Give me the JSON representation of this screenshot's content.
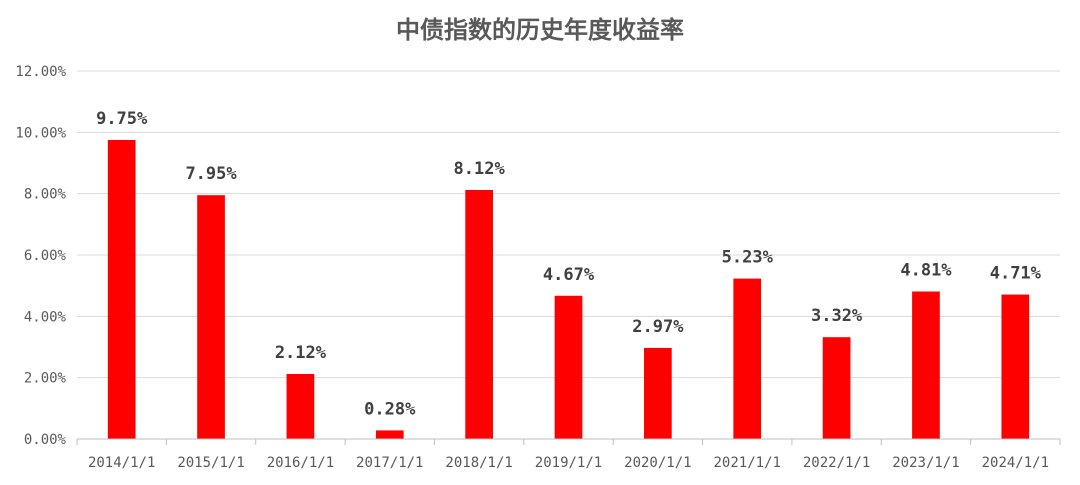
{
  "chart_data": {
    "type": "bar",
    "title": "中债指数的历史年度收益率",
    "xlabel": "",
    "ylabel": "",
    "categories": [
      "2014/1/1",
      "2015/1/1",
      "2016/1/1",
      "2017/1/1",
      "2018/1/1",
      "2019/1/1",
      "2020/1/1",
      "2021/1/1",
      "2022/1/1",
      "2023/1/1",
      "2024/1/1"
    ],
    "values": [
      9.75,
      7.95,
      2.12,
      0.28,
      8.12,
      4.67,
      2.97,
      5.23,
      3.32,
      4.81,
      4.71
    ],
    "data_labels": [
      "9.75%",
      "7.95%",
      "2.12%",
      "0.28%",
      "8.12%",
      "4.67%",
      "2.97%",
      "5.23%",
      "3.32%",
      "4.81%",
      "4.71%"
    ],
    "ylim": [
      0,
      12
    ],
    "yticks": [
      0,
      2,
      4,
      6,
      8,
      10,
      12
    ],
    "ytick_labels": [
      "0.00%",
      "2.00%",
      "4.00%",
      "6.00%",
      "8.00%",
      "10.00%",
      "12.00%"
    ],
    "grid": true,
    "legend": "none",
    "bar_color": "#ff0000"
  }
}
